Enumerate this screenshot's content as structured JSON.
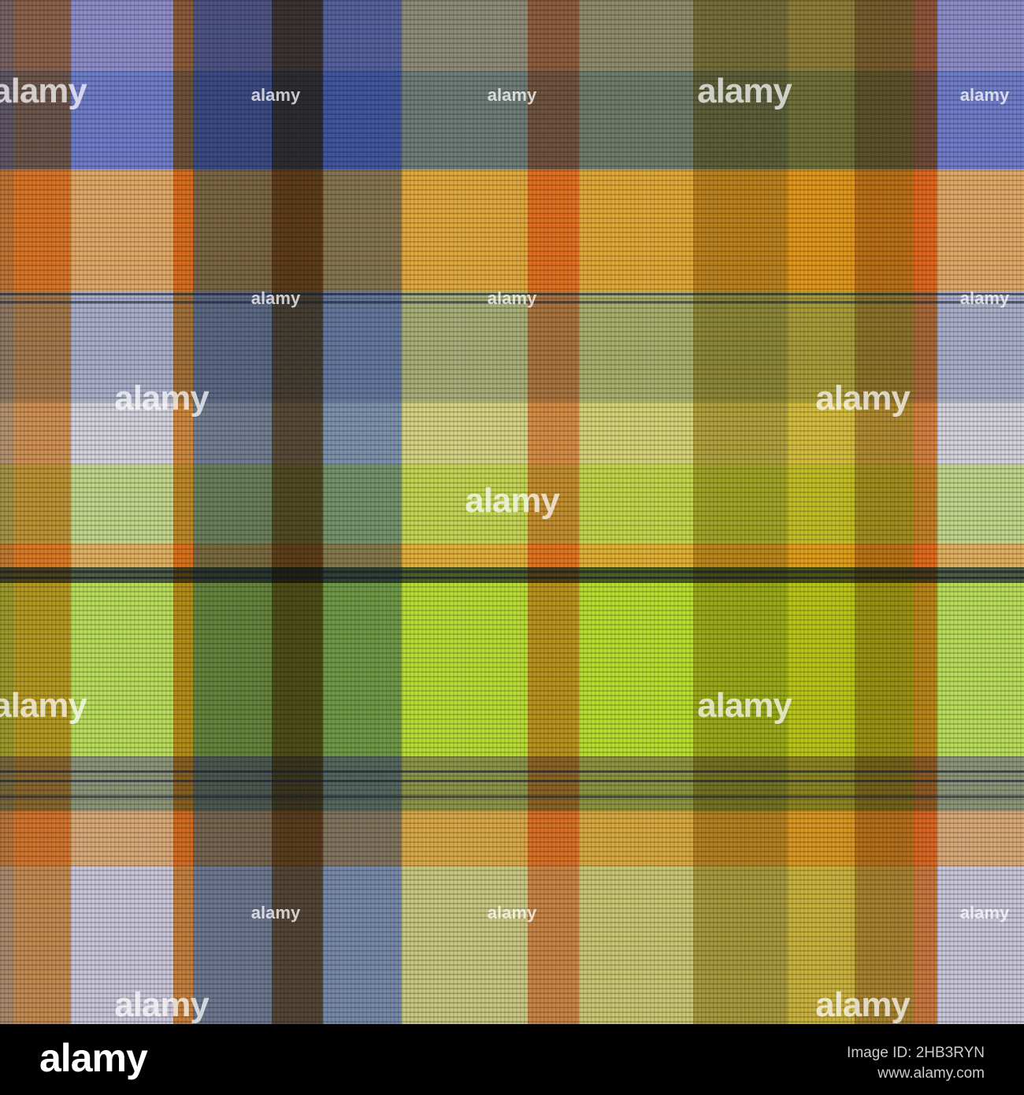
{
  "watermark": "alamy",
  "footer": {
    "logo": "alamy",
    "image_id": "Image ID: 2HB3RYN",
    "url": "www.alamy.com"
  }
}
